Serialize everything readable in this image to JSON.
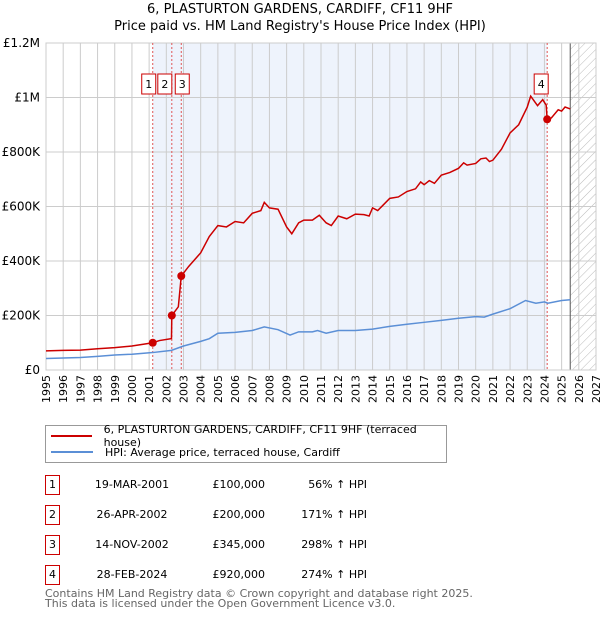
{
  "title": "6, PLASTURTON GARDENS, CARDIFF, CF11 9HF",
  "subtitle": "Price paid vs. HM Land Registry's House Price Index (HPI)",
  "chart_data": {
    "type": "line",
    "xlim": [
      1995,
      2027
    ],
    "ylim": [
      0,
      1200000
    ],
    "y_ticks": [
      {
        "v": 0,
        "label": "£0"
      },
      {
        "v": 200000,
        "label": "£200K"
      },
      {
        "v": 400000,
        "label": "£400K"
      },
      {
        "v": 600000,
        "label": "£600K"
      },
      {
        "v": 800000,
        "label": "£800K"
      },
      {
        "v": 1000000,
        "label": "£1M"
      },
      {
        "v": 1200000,
        "label": "£1.2M"
      }
    ],
    "x_ticks": [
      "1995",
      "1996",
      "1997",
      "1998",
      "1999",
      "2000",
      "2001",
      "2002",
      "2003",
      "2004",
      "2005",
      "2006",
      "2007",
      "2008",
      "2009",
      "2010",
      "2011",
      "2012",
      "2013",
      "2014",
      "2015",
      "2016",
      "2017",
      "2018",
      "2019",
      "2020",
      "2021",
      "2022",
      "2023",
      "2024",
      "2025",
      "2026",
      "2027"
    ],
    "grid": true,
    "shaded_ownership": [
      2001.21,
      2024.16
    ],
    "forecast_hatch_from": 2025.5,
    "colors": {
      "property": "#cc0000",
      "hpi": "#5b8fd6"
    },
    "series": [
      {
        "name": "6, PLASTURTON GARDENS, CARDIFF, CF11 9HF (terraced house)",
        "color": "#cc0000",
        "points": [
          [
            1995,
            70000
          ],
          [
            1996,
            72000
          ],
          [
            1997,
            73000
          ],
          [
            1998,
            78000
          ],
          [
            1999,
            82000
          ],
          [
            2000,
            88000
          ],
          [
            2000.8,
            96000
          ],
          [
            2001.21,
            100000
          ],
          [
            2001.6,
            108000
          ],
          [
            2002.3,
            115000
          ],
          [
            2002.32,
            200000
          ],
          [
            2002.7,
            232000
          ],
          [
            2002.87,
            345000
          ],
          [
            2003.3,
            380000
          ],
          [
            2004,
            430000
          ],
          [
            2004.5,
            490000
          ],
          [
            2005,
            530000
          ],
          [
            2005.5,
            525000
          ],
          [
            2006,
            545000
          ],
          [
            2006.5,
            540000
          ],
          [
            2007,
            575000
          ],
          [
            2007.5,
            585000
          ],
          [
            2007.7,
            615000
          ],
          [
            2008,
            595000
          ],
          [
            2008.5,
            590000
          ],
          [
            2009,
            525000
          ],
          [
            2009.3,
            500000
          ],
          [
            2009.7,
            540000
          ],
          [
            2010,
            550000
          ],
          [
            2010.5,
            550000
          ],
          [
            2010.9,
            568000
          ],
          [
            2011.3,
            540000
          ],
          [
            2011.6,
            530000
          ],
          [
            2012,
            565000
          ],
          [
            2012.5,
            555000
          ],
          [
            2013,
            572000
          ],
          [
            2013.5,
            570000
          ],
          [
            2013.8,
            565000
          ],
          [
            2014,
            595000
          ],
          [
            2014.3,
            585000
          ],
          [
            2015,
            630000
          ],
          [
            2015.5,
            635000
          ],
          [
            2016,
            655000
          ],
          [
            2016.5,
            665000
          ],
          [
            2016.8,
            690000
          ],
          [
            2017,
            680000
          ],
          [
            2017.3,
            695000
          ],
          [
            2017.6,
            685000
          ],
          [
            2018,
            715000
          ],
          [
            2018.5,
            725000
          ],
          [
            2019,
            740000
          ],
          [
            2019.3,
            760000
          ],
          [
            2019.5,
            752000
          ],
          [
            2020,
            758000
          ],
          [
            2020.3,
            775000
          ],
          [
            2020.6,
            778000
          ],
          [
            2020.8,
            765000
          ],
          [
            2021,
            770000
          ],
          [
            2021.5,
            810000
          ],
          [
            2022,
            870000
          ],
          [
            2022.5,
            900000
          ],
          [
            2023,
            965000
          ],
          [
            2023.2,
            1005000
          ],
          [
            2023.6,
            970000
          ],
          [
            2023.9,
            992000
          ],
          [
            2024.1,
            972000
          ],
          [
            2024.16,
            920000
          ],
          [
            2024.4,
            925000
          ],
          [
            2024.8,
            955000
          ],
          [
            2025,
            950000
          ],
          [
            2025.2,
            965000
          ],
          [
            2025.5,
            958000
          ]
        ]
      },
      {
        "name": "HPI: Average price, terraced house, Cardiff",
        "color": "#5b8fd6",
        "points": [
          [
            1995,
            42000
          ],
          [
            1996,
            44000
          ],
          [
            1997,
            46000
          ],
          [
            1998,
            50000
          ],
          [
            1999,
            55000
          ],
          [
            2000,
            58000
          ],
          [
            2001.2,
            64000
          ],
          [
            2002.3,
            72000
          ],
          [
            2003,
            88000
          ],
          [
            2004,
            105000
          ],
          [
            2004.5,
            115000
          ],
          [
            2005,
            135000
          ],
          [
            2006,
            138000
          ],
          [
            2007,
            145000
          ],
          [
            2007.7,
            158000
          ],
          [
            2008.5,
            148000
          ],
          [
            2009.2,
            128000
          ],
          [
            2009.7,
            140000
          ],
          [
            2010.5,
            140000
          ],
          [
            2010.8,
            145000
          ],
          [
            2011.3,
            135000
          ],
          [
            2012,
            145000
          ],
          [
            2013,
            145000
          ],
          [
            2014,
            150000
          ],
          [
            2015,
            160000
          ],
          [
            2016,
            168000
          ],
          [
            2017,
            175000
          ],
          [
            2018,
            182000
          ],
          [
            2019,
            190000
          ],
          [
            2020,
            196000
          ],
          [
            2020.5,
            194000
          ],
          [
            2021,
            205000
          ],
          [
            2022,
            225000
          ],
          [
            2022.9,
            255000
          ],
          [
            2023.5,
            245000
          ],
          [
            2024,
            250000
          ],
          [
            2024.2,
            245000
          ],
          [
            2025,
            255000
          ],
          [
            2025.5,
            258000
          ]
        ]
      }
    ],
    "sales": [
      {
        "id": "1",
        "x": 2001.21,
        "y": 100000
      },
      {
        "id": "2",
        "x": 2002.32,
        "y": 200000
      },
      {
        "id": "3",
        "x": 2002.87,
        "y": 345000
      },
      {
        "id": "4",
        "x": 2024.16,
        "y": 920000
      }
    ]
  },
  "legend": {
    "property": "6, PLASTURTON GARDENS, CARDIFF, CF11 9HF (terraced house)",
    "hpi": "HPI: Average price, terraced house, Cardiff"
  },
  "transactions": [
    {
      "id": "1",
      "date": "19-MAR-2001",
      "price": "£100,000",
      "hpi": "56% ↑ HPI"
    },
    {
      "id": "2",
      "date": "26-APR-2002",
      "price": "£200,000",
      "hpi": "171% ↑ HPI"
    },
    {
      "id": "3",
      "date": "14-NOV-2002",
      "price": "£345,000",
      "hpi": "298% ↑ HPI"
    },
    {
      "id": "4",
      "date": "28-FEB-2024",
      "price": "£920,000",
      "hpi": "274% ↑ HPI"
    }
  ],
  "footer": {
    "line1": "Contains HM Land Registry data © Crown copyright and database right 2025.",
    "line2": "This data is licensed under the Open Government Licence v3.0."
  }
}
